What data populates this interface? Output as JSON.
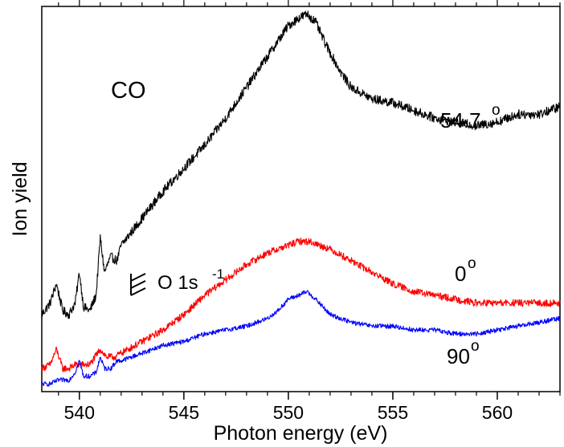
{
  "chart_data": {
    "type": "line",
    "xlabel": "Photon energy (eV)",
    "ylabel": "Ion yield",
    "xlim": [
      538.2,
      563
    ],
    "ylim": [
      0,
      1
    ],
    "grid": false,
    "y_tick_labels_shown": false,
    "x_ticks": [
      540,
      545,
      550,
      555,
      560
    ],
    "x_tick_labels": [
      "540",
      "545",
      "550",
      "555",
      "560"
    ],
    "annotations": {
      "molecule": "CO",
      "resonance_label": "O 1s",
      "resonance_superscript": "-1",
      "resonance_marker_lines": 3
    },
    "series": [
      {
        "label": "54.7",
        "label_superscript": "o",
        "color": "#000000",
        "x": [
          538.2,
          538.6,
          538.9,
          539.2,
          539.5,
          539.8,
          540.0,
          540.2,
          540.5,
          540.8,
          541.0,
          541.2,
          541.5,
          541.8,
          542.0,
          543.0,
          544.0,
          545.0,
          546.0,
          547.0,
          548.0,
          549.0,
          549.5,
          550.0,
          550.5,
          550.9,
          551.3,
          551.8,
          552.5,
          553.0,
          554.0,
          555.0,
          556.0,
          557.0,
          558.0,
          559.0,
          560.0,
          561.0,
          562.0,
          563.0
        ],
        "y": [
          0.2,
          0.23,
          0.28,
          0.21,
          0.2,
          0.23,
          0.31,
          0.22,
          0.21,
          0.25,
          0.4,
          0.31,
          0.35,
          0.34,
          0.38,
          0.45,
          0.52,
          0.58,
          0.64,
          0.71,
          0.79,
          0.87,
          0.91,
          0.95,
          0.97,
          0.98,
          0.96,
          0.9,
          0.83,
          0.79,
          0.76,
          0.75,
          0.73,
          0.71,
          0.7,
          0.69,
          0.7,
          0.72,
          0.72,
          0.74
        ]
      },
      {
        "label": "0",
        "label_superscript": "o",
        "color": "#ff0000",
        "x": [
          538.2,
          538.6,
          538.9,
          539.2,
          539.5,
          539.8,
          540.0,
          540.5,
          541.0,
          541.3,
          541.7,
          542.0,
          543.0,
          544.0,
          545.0,
          546.0,
          547.0,
          548.0,
          549.0,
          550.0,
          550.5,
          551.0,
          551.5,
          552.0,
          553.0,
          554.0,
          555.0,
          556.0,
          557.0,
          558.0,
          559.0,
          560.0,
          561.0,
          562.0,
          563.0
        ],
        "y": [
          0.06,
          0.07,
          0.11,
          0.06,
          0.06,
          0.07,
          0.07,
          0.07,
          0.11,
          0.09,
          0.09,
          0.1,
          0.13,
          0.16,
          0.2,
          0.25,
          0.29,
          0.33,
          0.36,
          0.38,
          0.39,
          0.39,
          0.38,
          0.37,
          0.34,
          0.31,
          0.28,
          0.26,
          0.25,
          0.24,
          0.23,
          0.23,
          0.23,
          0.23,
          0.23
        ]
      },
      {
        "label": "90",
        "label_superscript": "o",
        "color": "#0000ff",
        "x": [
          538.2,
          538.6,
          539.0,
          539.5,
          539.8,
          540.0,
          540.2,
          540.5,
          540.8,
          541.0,
          541.2,
          541.5,
          541.8,
          542.0,
          543.0,
          544.0,
          545.0,
          546.0,
          547.0,
          548.0,
          549.0,
          549.5,
          550.0,
          550.5,
          550.9,
          551.3,
          552.0,
          553.0,
          554.0,
          555.0,
          556.0,
          557.0,
          558.0,
          559.0,
          560.0,
          561.0,
          562.0,
          563.0
        ],
        "y": [
          0.02,
          0.02,
          0.03,
          0.03,
          0.05,
          0.08,
          0.04,
          0.04,
          0.05,
          0.09,
          0.06,
          0.06,
          0.08,
          0.08,
          0.1,
          0.12,
          0.13,
          0.15,
          0.16,
          0.17,
          0.19,
          0.21,
          0.24,
          0.25,
          0.26,
          0.24,
          0.2,
          0.18,
          0.17,
          0.17,
          0.16,
          0.16,
          0.15,
          0.15,
          0.16,
          0.17,
          0.18,
          0.19
        ]
      }
    ]
  }
}
